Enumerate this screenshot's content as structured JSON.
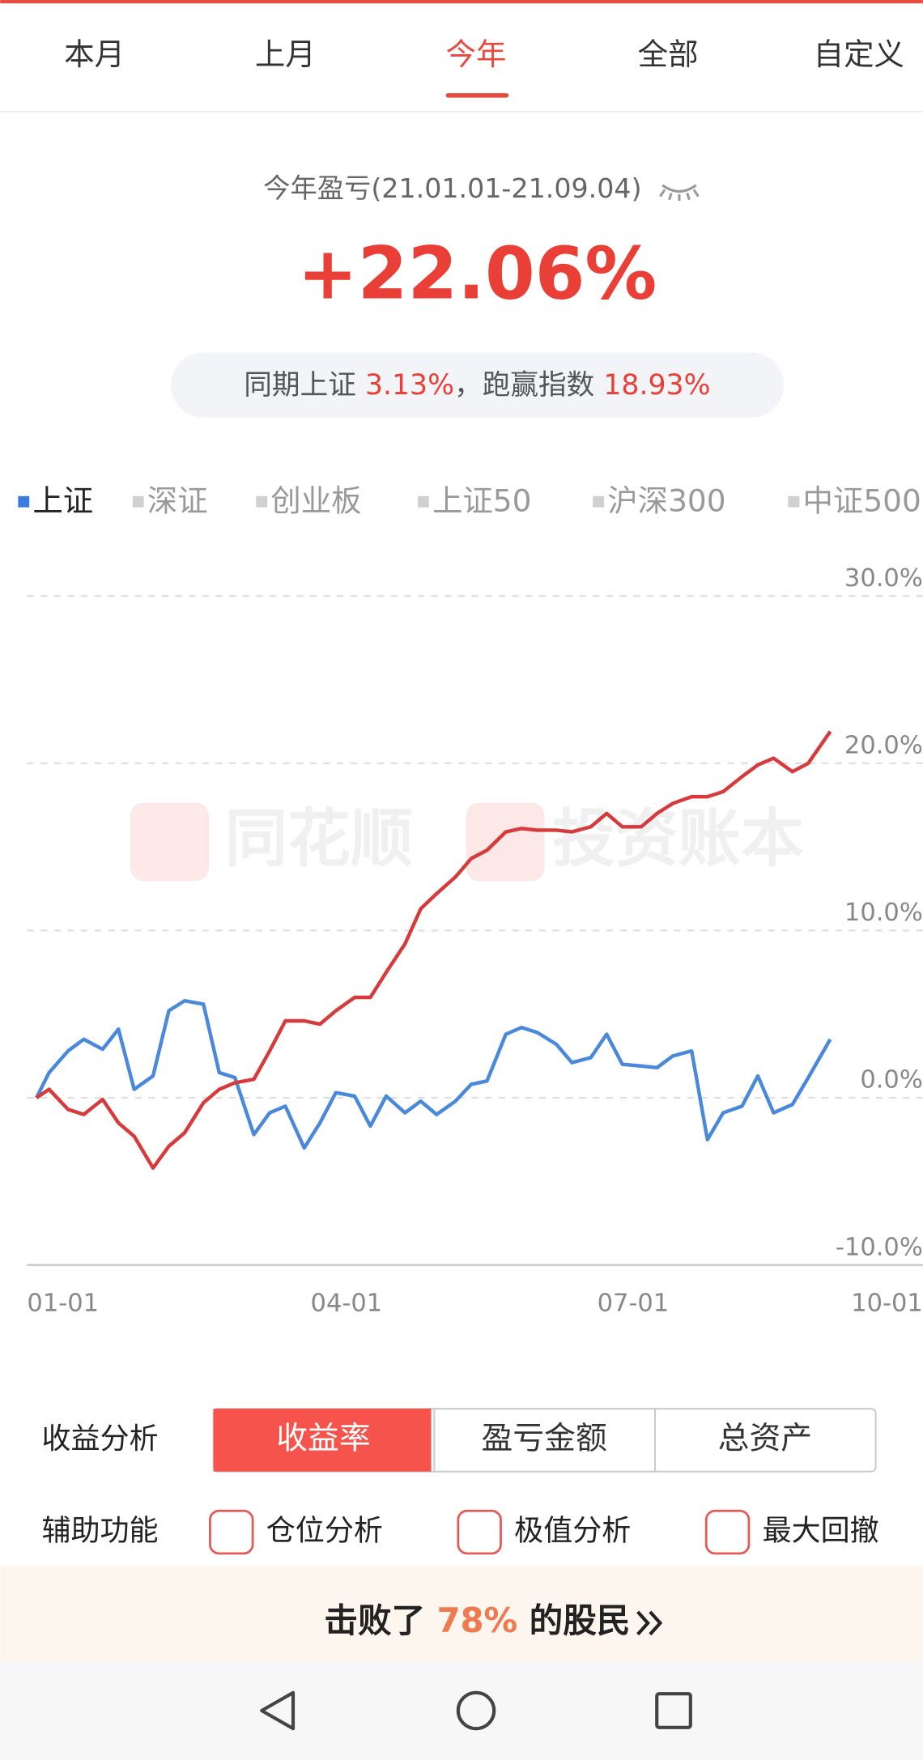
{
  "tabs": [
    "本月",
    "上月",
    "今年",
    "全部",
    "自定义"
  ],
  "summary": {
    "title": "今年盈亏(21.01.01-21.09.04)",
    "value": "+22.06%",
    "index_label": "同期上证",
    "index_value": "3.13%",
    "separator": "，跑赢指数",
    "excess_value": "18.93%"
  },
  "index_tabs": [
    "上证",
    "深证",
    "创业板",
    "上证50",
    "沪深300",
    "中证500"
  ],
  "watermark": [
    "同花顺",
    "投资账本"
  ],
  "chart_data": {
    "type": "line",
    "x": [
      "01-04",
      "01-08",
      "01-14",
      "01-19",
      "01-25",
      "01-30",
      "02-04",
      "02-10",
      "02-15",
      "02-20",
      "02-26",
      "03-03",
      "03-08",
      "03-14",
      "03-19",
      "03-24",
      "03-30",
      "04-04",
      "04-09",
      "04-15",
      "04-20",
      "04-25",
      "05-01",
      "05-06",
      "05-11",
      "05-17",
      "05-22",
      "05-27",
      "06-02",
      "06-07",
      "06-12",
      "06-18",
      "06-23",
      "06-29",
      "07-04",
      "07-09",
      "07-15",
      "07-20",
      "07-25",
      "07-31",
      "08-05",
      "08-10",
      "08-16",
      "08-21",
      "08-26",
      "09-01",
      "09-06",
      "09-13"
    ],
    "series": [
      {
        "color": "#d83a3b",
        "values": [
          0,
          0.5,
          -0.7,
          -1.0,
          -0.1,
          -1.5,
          -2.3,
          -4.2,
          -2.9,
          -2.1,
          -0.3,
          0.5,
          0.9,
          1.1,
          2.8,
          4.6,
          4.6,
          4.4,
          5.2,
          6.0,
          6.0,
          7.5,
          9.2,
          11.3,
          12.2,
          13.2,
          14.3,
          14.8,
          15.9,
          16.1,
          16.0,
          16.0,
          15.9,
          16.2,
          17.0,
          16.2,
          16.2,
          17.0,
          17.6,
          18.0,
          18.0,
          18.3,
          19.2,
          19.9,
          20.3,
          19.5,
          20.0,
          21.9
        ]
      },
      {
        "color": "#4a88dc",
        "values": [
          0,
          1.5,
          2.8,
          3.5,
          2.9,
          4.1,
          0.5,
          1.3,
          5.2,
          5.8,
          5.6,
          1.5,
          1.2,
          -2.2,
          -0.9,
          -0.5,
          -3.0,
          -1.5,
          0.3,
          0.1,
          -1.7,
          0.1,
          -0.9,
          -0.2,
          -1.0,
          -0.2,
          0.8,
          1.0,
          3.8,
          4.2,
          3.9,
          3.2,
          2.1,
          2.4,
          3.8,
          2.0,
          1.9,
          1.8,
          2.5,
          2.8,
          -2.5,
          -0.9,
          -0.5,
          1.3,
          -0.9,
          -0.4,
          1.2,
          3.5
        ]
      }
    ],
    "xlim": [
      "01-01",
      "10-01"
    ],
    "xticks": [
      "01-01",
      "04-01",
      "07-01",
      "10-01"
    ],
    "ylim": [
      -10,
      30
    ],
    "yticks": [
      {
        "value": -10,
        "label": "-10.0%"
      },
      {
        "value": 0,
        "label": "0.0%"
      },
      {
        "value": 10,
        "label": "10.0%"
      },
      {
        "value": 20,
        "label": "20.0%"
      },
      {
        "value": 30,
        "label": "30.0%"
      }
    ],
    "grid": true
  },
  "analysis": {
    "label": "收益分析",
    "options": [
      "收益率",
      "盈亏金额",
      "总资产"
    ]
  },
  "aux": {
    "label": "辅助功能",
    "options": [
      "仓位分析",
      "极值分析",
      "最大回撤"
    ]
  },
  "banner": {
    "prefix": "击败了",
    "value": "78%",
    "suffix": "的股民"
  }
}
